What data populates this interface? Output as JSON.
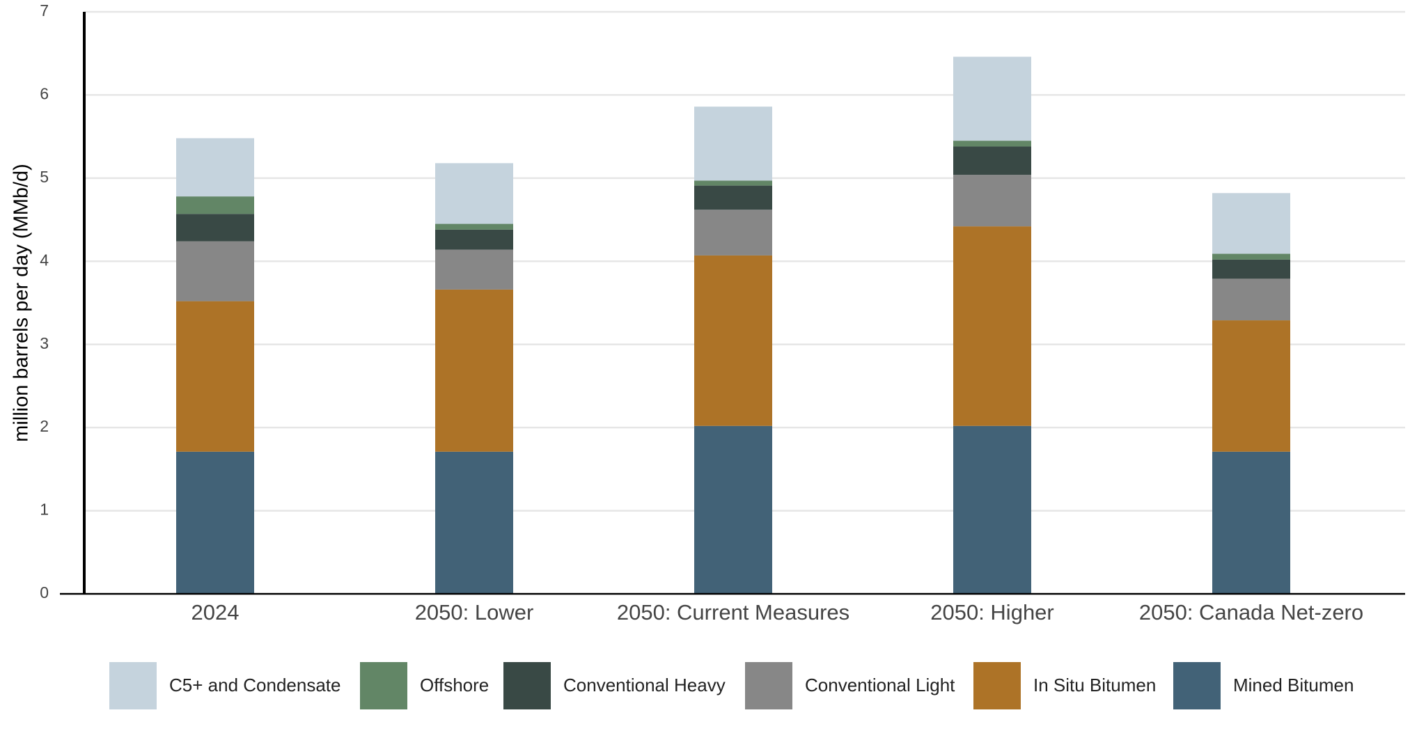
{
  "chart_data": {
    "type": "stacked_bar",
    "y_label": "million barrels per day (MMb/d)",
    "categories": [
      "2024",
      "2050: Lower",
      "2050: Current Measures",
      "2050: Higher",
      "2050: Canada Net-zero"
    ],
    "series": [
      {
        "name": "Mined Bitumen",
        "color": "#426277",
        "values": [
          1.71,
          1.71,
          2.02,
          2.02,
          1.71
        ]
      },
      {
        "name": "In Situ Bitumen",
        "color": "#ad7327",
        "values": [
          1.81,
          1.95,
          2.05,
          2.4,
          1.58
        ]
      },
      {
        "name": "Conventional Light",
        "color": "#878787",
        "values": [
          0.72,
          0.48,
          0.55,
          0.62,
          0.5
        ]
      },
      {
        "name": "Conventional Heavy",
        "color": "#394945",
        "values": [
          0.33,
          0.24,
          0.29,
          0.34,
          0.23
        ]
      },
      {
        "name": "Offshore",
        "color": "#628666",
        "values": [
          0.21,
          0.07,
          0.06,
          0.07,
          0.07
        ]
      },
      {
        "name": "C5+ and Condensate",
        "color": "#c5d3dd",
        "values": [
          0.7,
          0.73,
          0.89,
          1.01,
          0.73
        ]
      }
    ],
    "ylim": [
      0,
      7
    ],
    "yticks": [
      0,
      1,
      2,
      3,
      4,
      5,
      6,
      7
    ],
    "grid": true
  }
}
